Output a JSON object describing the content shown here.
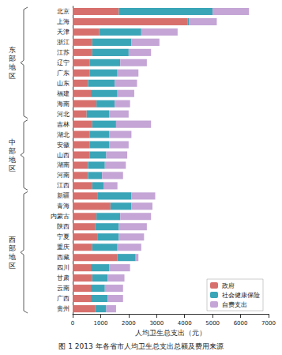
{
  "chart_data": {
    "type": "bar",
    "title": "图 1 2013 年各省市人均卫生总支出总额及费用来源",
    "xlabel": "人均卫生总支出（元）",
    "orientation": "horizontal",
    "stacked": true,
    "grid": false,
    "legend": "lower right",
    "categories": [
      "北京",
      "上海",
      "天津",
      "浙江",
      "江苏",
      "辽宁",
      "广东",
      "山东",
      "福建",
      "海南",
      "河北",
      "吉林",
      "湖北",
      "安徽",
      "山西",
      "湖南",
      "河南",
      "江西",
      "新疆",
      "青海",
      "内蒙古",
      "陕西",
      "宁夏",
      "重庆",
      "西藏",
      "四川",
      "甘肃",
      "云南",
      "广西",
      "贵州"
    ],
    "groups": [
      {
        "name": "东部地区",
        "start": "北京",
        "end": "河北"
      },
      {
        "name": "中部地区",
        "start": "吉林",
        "end": "江西"
      },
      {
        "name": "西部地区",
        "start": "新疆",
        "end": "贵州"
      }
    ],
    "series": [
      {
        "name": "政府",
        "color": "#d7706d",
        "values": [
          1650,
          4100,
          950,
          700,
          700,
          600,
          600,
          550,
          650,
          850,
          500,
          700,
          600,
          600,
          600,
          550,
          550,
          700,
          900,
          1350,
          850,
          800,
          900,
          700,
          1600,
          650,
          700,
          650,
          650,
          800
        ]
      },
      {
        "name": "社会健康保险",
        "color": "#3ba5b8",
        "values": [
          3350,
          50,
          1500,
          1400,
          1300,
          1100,
          1000,
          950,
          950,
          650,
          800,
          850,
          700,
          700,
          600,
          600,
          500,
          400,
          1200,
          750,
          850,
          850,
          750,
          900,
          650,
          650,
          550,
          500,
          600,
          400
        ]
      },
      {
        "name": "自费支出",
        "color": "#c4a5d6",
        "values": [
          1300,
          1000,
          1300,
          1000,
          800,
          950,
          750,
          800,
          600,
          550,
          700,
          1250,
          800,
          700,
          750,
          750,
          750,
          500,
          850,
          750,
          1100,
          1000,
          900,
          850,
          100,
          750,
          600,
          650,
          550,
          350
        ]
      }
    ],
    "xlim": [
      0,
      7000
    ],
    "xticks": [
      0,
      1000,
      2000,
      3000,
      4000,
      5000,
      6000,
      7000
    ]
  }
}
